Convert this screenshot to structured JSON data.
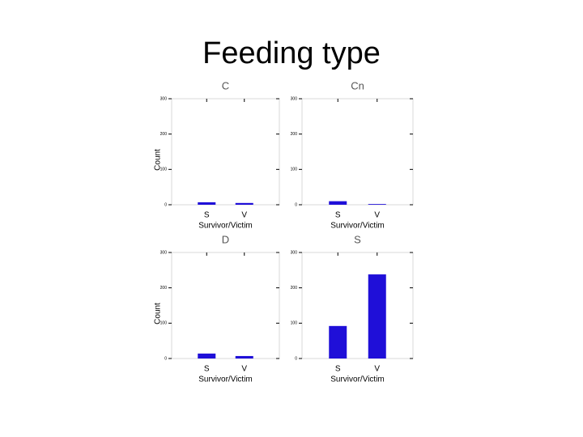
{
  "title": "Feeding type",
  "chart_data": [
    {
      "type": "bar",
      "title": "C",
      "categories": [
        "S",
        "V"
      ],
      "values": [
        7,
        5
      ],
      "color": "#1f0fd8",
      "ylim": [
        0,
        300
      ],
      "yticks": [
        0,
        100,
        200,
        300
      ],
      "xlabel": "Survivor/Victim",
      "ylabel": "Count"
    },
    {
      "type": "bar",
      "title": "Cn",
      "categories": [
        "S",
        "V"
      ],
      "values": [
        10,
        2
      ],
      "color": "#1f0fd8",
      "ylim": [
        0,
        300
      ],
      "yticks": [
        0,
        100,
        200,
        300
      ],
      "xlabel": "Survivor/Victim"
    },
    {
      "type": "bar",
      "title": "D",
      "categories": [
        "S",
        "V"
      ],
      "values": [
        14,
        7
      ],
      "color": "#1f0fd8",
      "ylim": [
        0,
        300
      ],
      "yticks": [
        0,
        100,
        200,
        300
      ],
      "xlabel": "Survivor/Victim",
      "ylabel": "Count"
    },
    {
      "type": "bar",
      "title": "S",
      "categories": [
        "S",
        "V"
      ],
      "values": [
        92,
        238
      ],
      "color": "#1f0fd8",
      "ylim": [
        0,
        300
      ],
      "yticks": [
        0,
        100,
        200,
        300
      ],
      "xlabel": "Survivor/Victim"
    }
  ]
}
